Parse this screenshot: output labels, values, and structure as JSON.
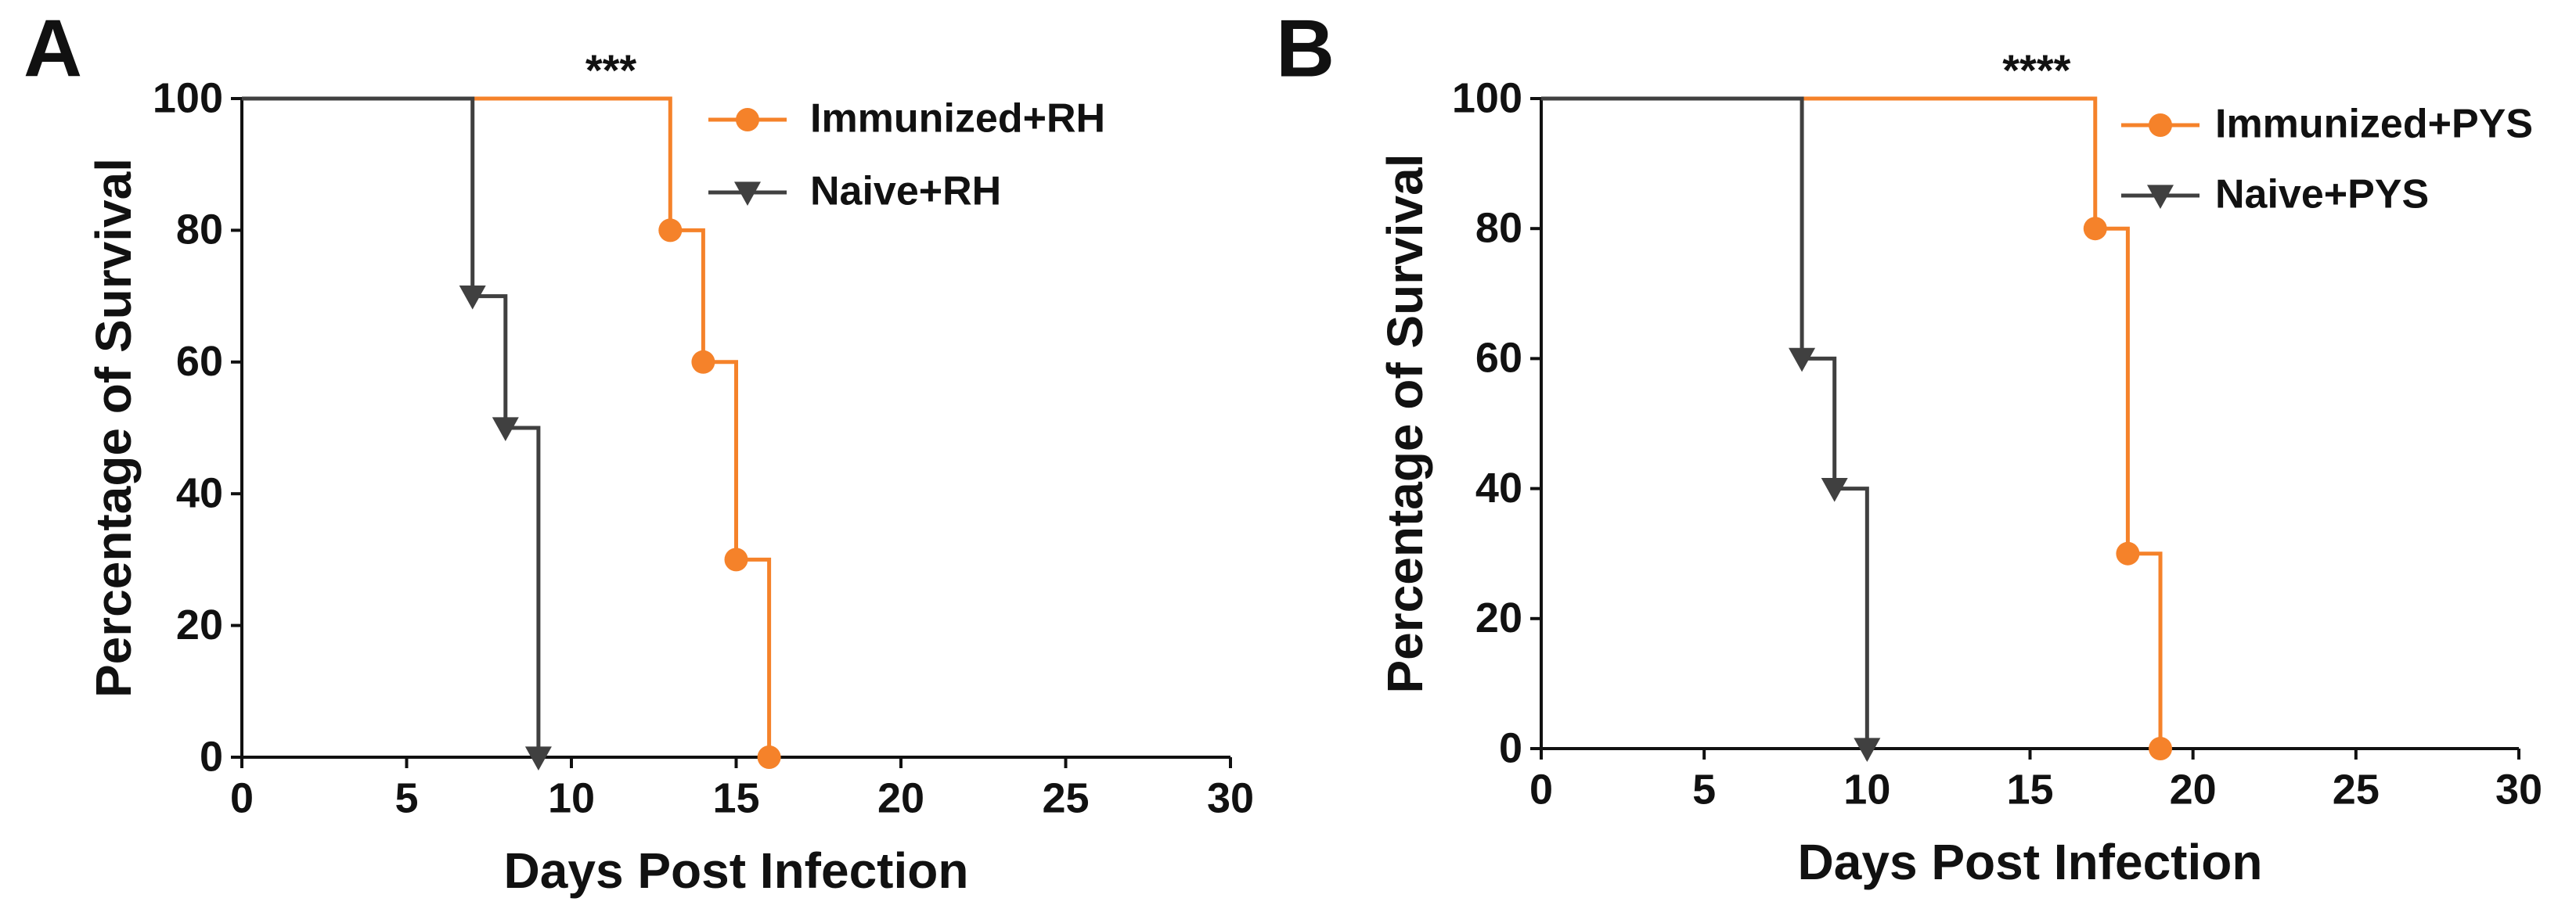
{
  "chart_data": [
    {
      "type": "step",
      "panel_label": "A",
      "annotation": "***",
      "xlabel": "Days Post Infection",
      "ylabel": "Percentage of Survival",
      "xlim": [
        0,
        30
      ],
      "ylim": [
        0,
        100
      ],
      "xticks": [
        0,
        5,
        10,
        15,
        20,
        25,
        30
      ],
      "yticks": [
        0,
        20,
        40,
        60,
        80,
        100
      ],
      "series": [
        {
          "name": "Immunized+RH",
          "color": "#f5822a",
          "marker": "circle",
          "x": [
            0,
            13,
            14,
            15,
            16
          ],
          "values": [
            100,
            80,
            60,
            30,
            0
          ]
        },
        {
          "name": "Naive+RH",
          "color": "#404040",
          "marker": "triangle-down",
          "x": [
            0,
            7,
            8,
            9
          ],
          "values": [
            100,
            70,
            50,
            0
          ]
        }
      ]
    },
    {
      "type": "step",
      "panel_label": "B",
      "annotation": "****",
      "xlabel": "Days Post Infection",
      "ylabel": "Percentage of Survival",
      "xlim": [
        0,
        30
      ],
      "ylim": [
        0,
        100
      ],
      "xticks": [
        0,
        5,
        10,
        15,
        20,
        25,
        30
      ],
      "yticks": [
        0,
        20,
        40,
        60,
        80,
        100
      ],
      "series": [
        {
          "name": "Immunized+PYS",
          "color": "#f5822a",
          "marker": "circle",
          "x": [
            0,
            17,
            18,
            19
          ],
          "values": [
            100,
            80,
            30,
            0
          ]
        },
        {
          "name": "Naive+PYS",
          "color": "#404040",
          "marker": "triangle-down",
          "x": [
            0,
            8,
            9,
            10
          ],
          "values": [
            100,
            60,
            40,
            0
          ]
        }
      ]
    }
  ]
}
